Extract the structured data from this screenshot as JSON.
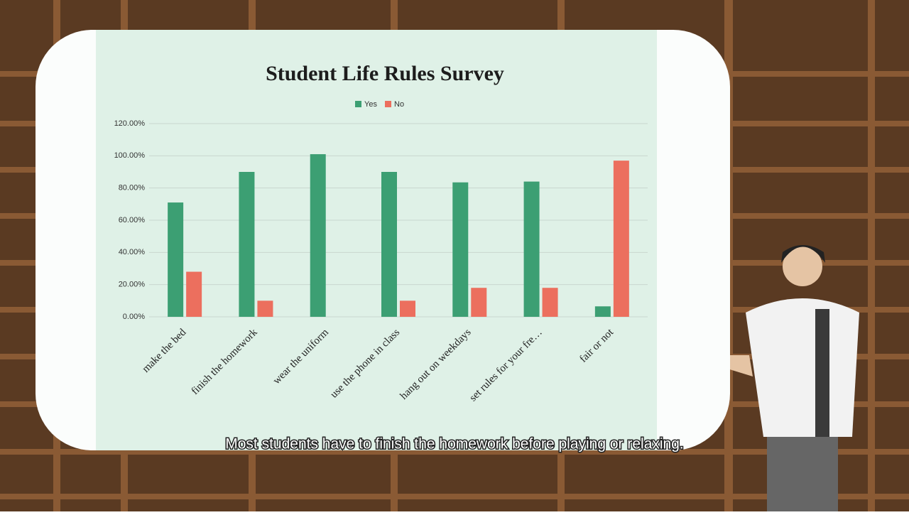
{
  "chart_data": {
    "type": "bar",
    "title": "Student Life Rules Survey",
    "categories": [
      "make the bed",
      "finish the homework",
      "wear the uniform",
      "use the phone in class",
      "hang out on weekdays",
      "set rules for your fre…",
      "fair or not"
    ],
    "series": [
      {
        "name": "Yes",
        "color": "#3c9f73",
        "values": [
          71,
          90,
          101,
          90,
          83.5,
          84,
          6.5
        ]
      },
      {
        "name": "No",
        "color": "#ec6f5e",
        "values": [
          28,
          10,
          0,
          10,
          18,
          18,
          97
        ]
      }
    ],
    "ylim": [
      0,
      120
    ],
    "yticks": [
      {
        "value": 0,
        "label": "0.00%"
      },
      {
        "value": 20,
        "label": "20.00%"
      },
      {
        "value": 40,
        "label": "40.00%"
      },
      {
        "value": 60,
        "label": "60.00%"
      },
      {
        "value": 80,
        "label": "80.00%"
      },
      {
        "value": 100,
        "label": "100.00%"
      },
      {
        "value": 120,
        "label": "120.00%"
      }
    ],
    "grid": true,
    "legend": "top"
  },
  "caption": "Most students have to finish the homework before playing or relaxing."
}
